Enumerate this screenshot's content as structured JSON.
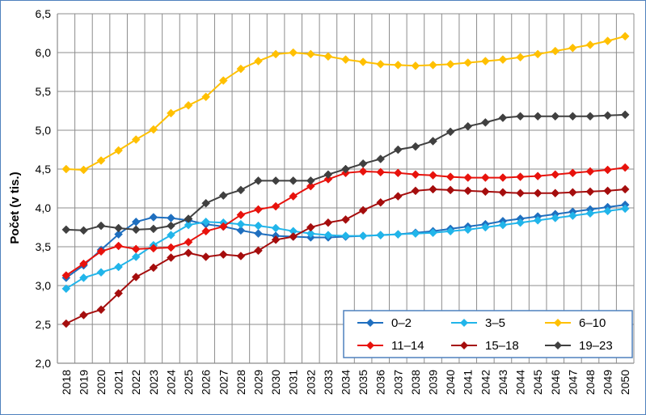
{
  "chart_data": {
    "type": "line",
    "ylabel": "Počet (v tis.)",
    "xlabel": "",
    "ylim": [
      2.0,
      6.5
    ],
    "y_ticks": [
      "2,0",
      "2,5",
      "3,0",
      "3,5",
      "4,0",
      "4,5",
      "5,0",
      "5,5",
      "6,0",
      "6,5"
    ],
    "grid": true,
    "legend_position": "bottom-right",
    "categories": [
      "2018",
      "2019",
      "2020",
      "2021",
      "2022",
      "2023",
      "2024",
      "2025",
      "2026",
      "2027",
      "2028",
      "2029",
      "2030",
      "2031",
      "2032",
      "2033",
      "2034",
      "2035",
      "2036",
      "2037",
      "2038",
      "2039",
      "2040",
      "2041",
      "2042",
      "2043",
      "2044",
      "2045",
      "2046",
      "2047",
      "2048",
      "2049",
      "2050"
    ],
    "series": [
      {
        "name": "0–2",
        "color": "#1f6fbf",
        "values": [
          3.1,
          3.26,
          3.46,
          3.66,
          3.82,
          3.88,
          3.87,
          3.84,
          3.79,
          3.76,
          3.71,
          3.67,
          3.64,
          3.63,
          3.62,
          3.62,
          3.63,
          3.64,
          3.65,
          3.66,
          3.68,
          3.7,
          3.73,
          3.76,
          3.79,
          3.83,
          3.86,
          3.89,
          3.92,
          3.95,
          3.98,
          4.01,
          4.04
        ]
      },
      {
        "name": "3–5",
        "color": "#21b5ea",
        "values": [
          2.96,
          3.1,
          3.17,
          3.24,
          3.37,
          3.52,
          3.65,
          3.78,
          3.82,
          3.81,
          3.79,
          3.77,
          3.74,
          3.7,
          3.67,
          3.65,
          3.64,
          3.64,
          3.65,
          3.66,
          3.67,
          3.68,
          3.7,
          3.72,
          3.75,
          3.78,
          3.81,
          3.84,
          3.87,
          3.9,
          3.93,
          3.96,
          3.99
        ]
      },
      {
        "name": "6–10",
        "color": "#ffc000",
        "values": [
          4.5,
          4.49,
          4.61,
          4.74,
          4.88,
          5.01,
          5.22,
          5.32,
          5.43,
          5.64,
          5.79,
          5.89,
          5.98,
          6.0,
          5.98,
          5.95,
          5.91,
          5.88,
          5.85,
          5.84,
          5.83,
          5.84,
          5.85,
          5.87,
          5.89,
          5.91,
          5.94,
          5.98,
          6.02,
          6.06,
          6.1,
          6.15,
          6.21
        ]
      },
      {
        "name": "11–14",
        "color": "#e8120c",
        "values": [
          3.13,
          3.28,
          3.44,
          3.51,
          3.47,
          3.48,
          3.49,
          3.56,
          3.7,
          3.76,
          3.91,
          3.98,
          4.02,
          4.15,
          4.28,
          4.37,
          4.45,
          4.47,
          4.46,
          4.45,
          4.43,
          4.42,
          4.4,
          4.39,
          4.39,
          4.39,
          4.4,
          4.41,
          4.43,
          4.45,
          4.47,
          4.49,
          4.52
        ]
      },
      {
        "name": "15–18",
        "color": "#a50d0d",
        "values": [
          2.51,
          2.62,
          2.69,
          2.9,
          3.11,
          3.23,
          3.36,
          3.42,
          3.37,
          3.4,
          3.38,
          3.45,
          3.59,
          3.63,
          3.75,
          3.81,
          3.85,
          3.97,
          4.07,
          4.15,
          4.22,
          4.24,
          4.23,
          4.22,
          4.21,
          4.2,
          4.19,
          4.19,
          4.19,
          4.2,
          4.21,
          4.22,
          4.24
        ]
      },
      {
        "name": "19–23",
        "color": "#404040",
        "values": [
          3.72,
          3.71,
          3.77,
          3.74,
          3.72,
          3.73,
          3.77,
          3.86,
          4.06,
          4.16,
          4.23,
          4.35,
          4.35,
          4.35,
          4.35,
          4.43,
          4.5,
          4.57,
          4.63,
          4.75,
          4.79,
          4.86,
          4.98,
          5.05,
          5.1,
          5.16,
          5.18,
          5.18,
          5.18,
          5.18,
          5.18,
          5.19,
          5.2
        ]
      }
    ]
  }
}
